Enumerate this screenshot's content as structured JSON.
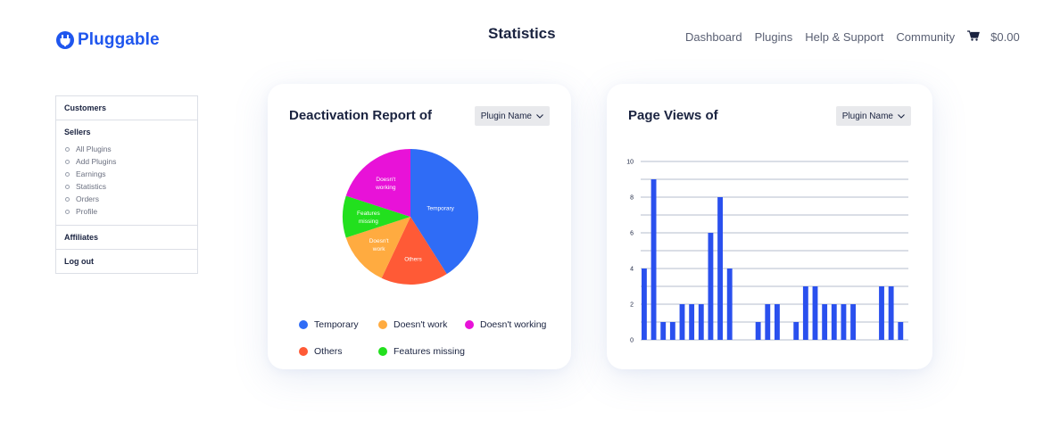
{
  "brand": {
    "name": "Pluggable",
    "color": "#1f56ee"
  },
  "header": {
    "title": "Statistics",
    "nav": [
      "Dashboard",
      "Plugins",
      "Help & Support",
      "Community"
    ],
    "cart_total": "$0.00"
  },
  "sidebar": {
    "sections": [
      {
        "label": "Customers"
      },
      {
        "label": "Sellers",
        "items": [
          "All Plugins",
          "Add Plugins",
          "Earnings",
          "Statistics",
          "Orders",
          "Profile"
        ]
      },
      {
        "label": "Affiliates"
      },
      {
        "label": "Log out"
      }
    ]
  },
  "deactivation": {
    "title": "Deactivation Report of",
    "dropdown": "Plugin Name"
  },
  "pageviews": {
    "title": "Page Views of",
    "dropdown": "Plugin Name"
  },
  "chart_data": [
    {
      "type": "pie",
      "title": "",
      "slices": [
        {
          "label": "Temporary",
          "value": 41,
          "color": "#2f6cf6"
        },
        {
          "label": "Others",
          "value": 16,
          "color": "#ff5a36"
        },
        {
          "label": "Doesn't work",
          "value": 13,
          "color": "#ffab40"
        },
        {
          "label": "Features missing",
          "value": 10,
          "color": "#22e01e"
        },
        {
          "label": "Doesn't working",
          "value": 20,
          "color": "#e812d8"
        }
      ],
      "legend": [
        [
          "Temporary",
          "Doesn't work",
          "Doesn't working"
        ],
        [
          "Others",
          "Features missing"
        ]
      ],
      "legend_placement": "bottom"
    },
    {
      "type": "bar",
      "title": "",
      "values": [
        4,
        9,
        1,
        1,
        2,
        2,
        2,
        6,
        8,
        4,
        0,
        0,
        1,
        2,
        2,
        0,
        1,
        3,
        3,
        2,
        2,
        2,
        2,
        0,
        0,
        3,
        3,
        1
      ],
      "yticks": [
        0,
        2,
        4,
        6,
        8,
        10
      ],
      "ylim": [
        0,
        10
      ],
      "color": "#2a50ee",
      "grid": true
    }
  ]
}
